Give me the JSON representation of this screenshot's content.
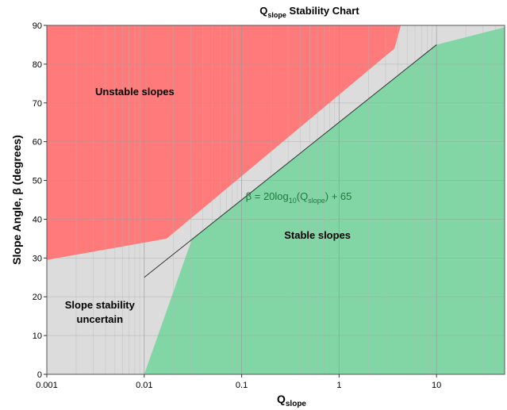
{
  "chart_data": {
    "type": "area",
    "title": {
      "main": "Q",
      "sub": "slope",
      "rest": " Stability Chart"
    },
    "xlabel": {
      "main": "Q",
      "sub": "slope"
    },
    "ylabel": "Slope Angle, β (degrees)",
    "x_scale": "log",
    "xlim": [
      0.001,
      50
    ],
    "ylim": [
      0,
      90
    ],
    "x_ticks": [
      0.001,
      0.01,
      0.1,
      1,
      10
    ],
    "x_tick_labels": [
      "0.001",
      "0.01",
      "0.1",
      "1",
      "10"
    ],
    "y_ticks": [
      0,
      10,
      20,
      30,
      40,
      50,
      60,
      70,
      80,
      90
    ],
    "y_tick_labels": [
      "0",
      "10",
      "20",
      "30",
      "40",
      "50",
      "60",
      "70",
      "80",
      "90"
    ],
    "grid": true,
    "regions": [
      {
        "name": "Unstable slopes",
        "color": "#ff7b7b",
        "boundary": [
          [
            0.001,
            29.5
          ],
          [
            0.017,
            35
          ],
          [
            3.7,
            84
          ],
          [
            4.3,
            90
          ],
          [
            0.001,
            90
          ]
        ],
        "label_at": [
          0.008,
          72
        ]
      },
      {
        "name": "Stable slopes",
        "color": "#82d6a6",
        "boundary": [
          [
            0.01,
            0
          ],
          [
            0.031,
            35
          ],
          [
            10,
            85
          ],
          [
            50,
            89.5
          ],
          [
            50,
            0
          ]
        ],
        "label_at": [
          0.6,
          35
        ]
      },
      {
        "name": "Slope stability uncertain",
        "lines": [
          "Slope stability",
          "uncertain"
        ],
        "color": "#dcdcdc",
        "label_at": [
          0.0035,
          17
        ]
      }
    ],
    "equation_line": {
      "label_parts": [
        "β = 20log",
        "10",
        "(Q",
        "slope",
        ") + 65"
      ],
      "x": [
        0.01,
        10
      ],
      "y": [
        25,
        85
      ],
      "label_at": [
        0.11,
        45
      ]
    }
  }
}
